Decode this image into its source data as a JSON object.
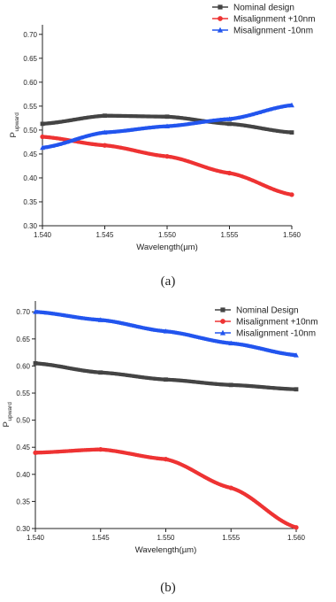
{
  "chart_data": [
    {
      "type": "line",
      "caption": "(a)",
      "xlabel": "Wavelength(µm)",
      "ylabel_main": "P",
      "ylabel_sub": "upward",
      "xlim": [
        1.54,
        1.56
      ],
      "ylim": [
        0.3,
        0.72
      ],
      "xticks": [
        "1.540",
        "1.545",
        "1.550",
        "1.555",
        "1.560"
      ],
      "yticks": [
        "0.30",
        "0.35",
        "0.40",
        "0.45",
        "0.50",
        "0.55",
        "0.60",
        "0.65",
        "0.70"
      ],
      "grid": false,
      "legend_position": "top-right",
      "x": [
        1.54,
        1.545,
        1.55,
        1.555,
        1.56
      ],
      "series": [
        {
          "name": "Nominal design",
          "color": "#444444",
          "marker": "square",
          "values": [
            0.513,
            0.53,
            0.528,
            0.513,
            0.495
          ]
        },
        {
          "name": "Misalignment +10nm",
          "color": "#ee3333",
          "marker": "circle",
          "values": [
            0.486,
            0.468,
            0.445,
            0.41,
            0.365
          ]
        },
        {
          "name": "Misalignment -10nm",
          "color": "#2255ee",
          "marker": "triangle",
          "values": [
            0.463,
            0.495,
            0.508,
            0.523,
            0.552
          ]
        }
      ]
    },
    {
      "type": "line",
      "caption": "(b)",
      "xlabel": "Wavelength(µm)",
      "ylabel_main": "P",
      "ylabel_sub": "upward",
      "xlim": [
        1.54,
        1.56
      ],
      "ylim": [
        0.3,
        0.72
      ],
      "xticks": [
        "1.540",
        "1.545",
        "1.550",
        "1.555",
        "1.560"
      ],
      "yticks": [
        "0.30",
        "0.35",
        "0.40",
        "0.45",
        "0.50",
        "0.55",
        "0.60",
        "0.65",
        "0.70"
      ],
      "grid": false,
      "legend_position": "top-right",
      "x": [
        1.54,
        1.545,
        1.55,
        1.555,
        1.56
      ],
      "series": [
        {
          "name": "Nominal Design",
          "color": "#444444",
          "marker": "square",
          "values": [
            0.605,
            0.588,
            0.575,
            0.565,
            0.557
          ]
        },
        {
          "name": "Misalignment +10nm",
          "color": "#ee3333",
          "marker": "circle",
          "values": [
            0.44,
            0.446,
            0.428,
            0.375,
            0.302
          ]
        },
        {
          "name": "Misalignment -10nm",
          "color": "#2255ee",
          "marker": "triangle",
          "values": [
            0.7,
            0.685,
            0.664,
            0.642,
            0.62
          ]
        }
      ]
    }
  ]
}
